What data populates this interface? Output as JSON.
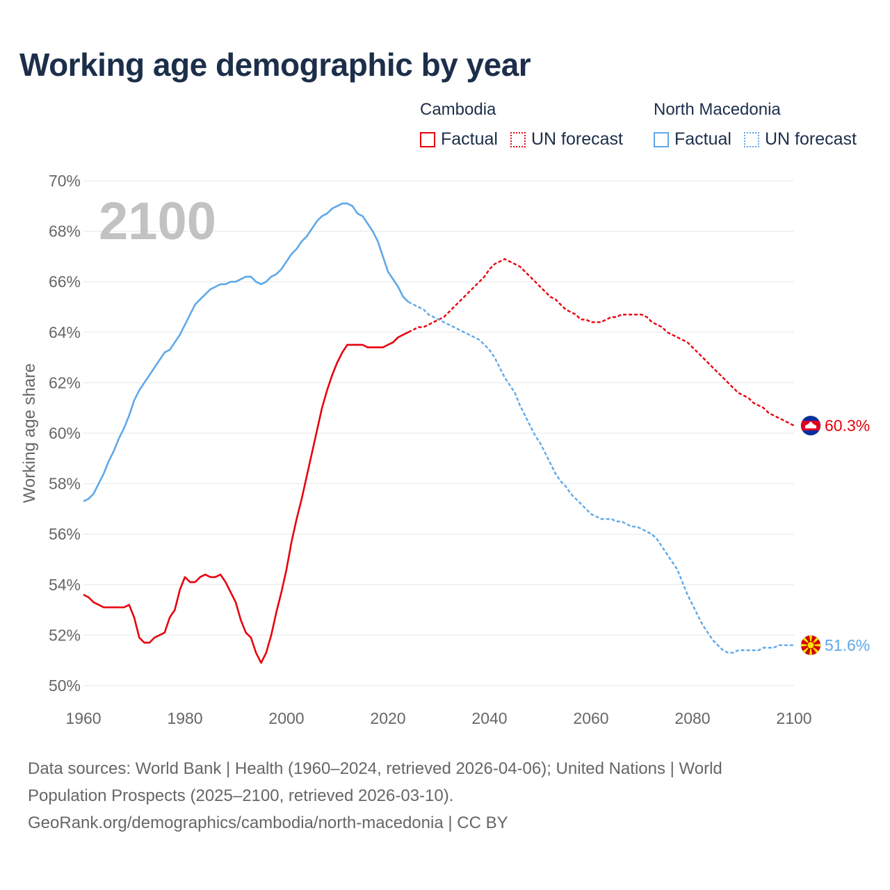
{
  "title": "Working age demographic by year",
  "legend": {
    "groups": [
      {
        "country": "Cambodia",
        "color": "#e8000b",
        "factual_label": "Factual",
        "forecast_label": "UN forecast"
      },
      {
        "country": "North Macedonia",
        "color": "#5fa8e8",
        "factual_label": "Factual",
        "forecast_label": "UN forecast"
      }
    ]
  },
  "year_watermark": "2100",
  "footer": {
    "line1": "Data sources: World Bank | Health (1960–2024, retrieved 2026-04-06); United Nations | World",
    "line2": "Population Prospects (2025–2100, retrieved 2026-03-10).",
    "line3": "GeoRank.org/demographics/cambodia/north-macedonia | CC BY"
  },
  "chart_data": {
    "type": "line",
    "title": "Working age demographic by year",
    "xlabel": "",
    "ylabel": "Working age share",
    "xlim": [
      1960,
      2100
    ],
    "ylim": [
      50,
      70
    ],
    "x_ticks": [
      1960,
      1980,
      2000,
      2020,
      2040,
      2060,
      2080,
      2100
    ],
    "y_ticks": [
      50,
      52,
      54,
      56,
      58,
      60,
      62,
      64,
      66,
      68,
      70
    ],
    "y_tick_suffix": "%",
    "grid": true,
    "series": [
      {
        "name": "Cambodia",
        "color": "#e8000b",
        "end_label": "60.3%",
        "factual": [
          [
            1960,
            53.6
          ],
          [
            1961,
            53.5
          ],
          [
            1962,
            53.3
          ],
          [
            1963,
            53.2
          ],
          [
            1964,
            53.1
          ],
          [
            1965,
            53.1
          ],
          [
            1966,
            53.1
          ],
          [
            1967,
            53.1
          ],
          [
            1968,
            53.1
          ],
          [
            1969,
            53.2
          ],
          [
            1970,
            52.7
          ],
          [
            1971,
            51.9
          ],
          [
            1972,
            51.7
          ],
          [
            1973,
            51.7
          ],
          [
            1974,
            51.9
          ],
          [
            1975,
            52.0
          ],
          [
            1976,
            52.1
          ],
          [
            1977,
            52.7
          ],
          [
            1978,
            53.0
          ],
          [
            1979,
            53.8
          ],
          [
            1980,
            54.3
          ],
          [
            1981,
            54.1
          ],
          [
            1982,
            54.1
          ],
          [
            1983,
            54.3
          ],
          [
            1984,
            54.4
          ],
          [
            1985,
            54.3
          ],
          [
            1986,
            54.3
          ],
          [
            1987,
            54.4
          ],
          [
            1988,
            54.1
          ],
          [
            1989,
            53.7
          ],
          [
            1990,
            53.3
          ],
          [
            1991,
            52.6
          ],
          [
            1992,
            52.1
          ],
          [
            1993,
            51.9
          ],
          [
            1994,
            51.3
          ],
          [
            1995,
            50.9
          ],
          [
            1996,
            51.3
          ],
          [
            1997,
            52.0
          ],
          [
            1998,
            52.9
          ],
          [
            1999,
            53.7
          ],
          [
            2000,
            54.6
          ],
          [
            2001,
            55.7
          ],
          [
            2002,
            56.6
          ],
          [
            2003,
            57.4
          ],
          [
            2004,
            58.3
          ],
          [
            2005,
            59.2
          ],
          [
            2006,
            60.1
          ],
          [
            2007,
            61.0
          ],
          [
            2008,
            61.7
          ],
          [
            2009,
            62.3
          ],
          [
            2010,
            62.8
          ],
          [
            2011,
            63.2
          ],
          [
            2012,
            63.5
          ],
          [
            2013,
            63.5
          ],
          [
            2014,
            63.5
          ],
          [
            2015,
            63.5
          ],
          [
            2016,
            63.4
          ],
          [
            2017,
            63.4
          ],
          [
            2018,
            63.4
          ],
          [
            2019,
            63.4
          ],
          [
            2020,
            63.5
          ],
          [
            2021,
            63.6
          ],
          [
            2022,
            63.8
          ],
          [
            2023,
            63.9
          ],
          [
            2024,
            64.0
          ]
        ],
        "forecast": [
          [
            2024,
            64.0
          ],
          [
            2025,
            64.1
          ],
          [
            2026,
            64.2
          ],
          [
            2027,
            64.2
          ],
          [
            2028,
            64.3
          ],
          [
            2029,
            64.4
          ],
          [
            2030,
            64.5
          ],
          [
            2031,
            64.6
          ],
          [
            2032,
            64.8
          ],
          [
            2033,
            65.0
          ],
          [
            2034,
            65.2
          ],
          [
            2035,
            65.4
          ],
          [
            2036,
            65.6
          ],
          [
            2037,
            65.8
          ],
          [
            2038,
            66.0
          ],
          [
            2039,
            66.2
          ],
          [
            2040,
            66.5
          ],
          [
            2041,
            66.7
          ],
          [
            2042,
            66.8
          ],
          [
            2043,
            66.9
          ],
          [
            2044,
            66.8
          ],
          [
            2045,
            66.7
          ],
          [
            2046,
            66.6
          ],
          [
            2047,
            66.4
          ],
          [
            2048,
            66.2
          ],
          [
            2049,
            66.0
          ],
          [
            2050,
            65.8
          ],
          [
            2051,
            65.6
          ],
          [
            2052,
            65.4
          ],
          [
            2053,
            65.3
          ],
          [
            2054,
            65.1
          ],
          [
            2055,
            64.9
          ],
          [
            2056,
            64.8
          ],
          [
            2057,
            64.7
          ],
          [
            2058,
            64.5
          ],
          [
            2059,
            64.5
          ],
          [
            2060,
            64.4
          ],
          [
            2061,
            64.4
          ],
          [
            2062,
            64.4
          ],
          [
            2063,
            64.5
          ],
          [
            2064,
            64.6
          ],
          [
            2065,
            64.6
          ],
          [
            2066,
            64.7
          ],
          [
            2067,
            64.7
          ],
          [
            2068,
            64.7
          ],
          [
            2069,
            64.7
          ],
          [
            2070,
            64.7
          ],
          [
            2071,
            64.6
          ],
          [
            2072,
            64.4
          ],
          [
            2073,
            64.3
          ],
          [
            2074,
            64.2
          ],
          [
            2075,
            64.0
          ],
          [
            2076,
            63.9
          ],
          [
            2077,
            63.8
          ],
          [
            2078,
            63.7
          ],
          [
            2079,
            63.6
          ],
          [
            2080,
            63.4
          ],
          [
            2081,
            63.2
          ],
          [
            2082,
            63.0
          ],
          [
            2083,
            62.8
          ],
          [
            2084,
            62.6
          ],
          [
            2085,
            62.4
          ],
          [
            2086,
            62.2
          ],
          [
            2087,
            62.0
          ],
          [
            2088,
            61.8
          ],
          [
            2089,
            61.6
          ],
          [
            2090,
            61.5
          ],
          [
            2091,
            61.4
          ],
          [
            2092,
            61.2
          ],
          [
            2093,
            61.1
          ],
          [
            2094,
            61.0
          ],
          [
            2095,
            60.8
          ],
          [
            2096,
            60.7
          ],
          [
            2097,
            60.6
          ],
          [
            2098,
            60.5
          ],
          [
            2099,
            60.4
          ],
          [
            2100,
            60.3
          ]
        ]
      },
      {
        "name": "North Macedonia",
        "color": "#5fa8e8",
        "end_label": "51.6%",
        "factual": [
          [
            1960,
            57.3
          ],
          [
            1961,
            57.4
          ],
          [
            1962,
            57.6
          ],
          [
            1963,
            58.0
          ],
          [
            1964,
            58.4
          ],
          [
            1965,
            58.9
          ],
          [
            1966,
            59.3
          ],
          [
            1967,
            59.8
          ],
          [
            1968,
            60.2
          ],
          [
            1969,
            60.7
          ],
          [
            1970,
            61.3
          ],
          [
            1971,
            61.7
          ],
          [
            1972,
            62.0
          ],
          [
            1973,
            62.3
          ],
          [
            1974,
            62.6
          ],
          [
            1975,
            62.9
          ],
          [
            1976,
            63.2
          ],
          [
            1977,
            63.3
          ],
          [
            1978,
            63.6
          ],
          [
            1979,
            63.9
          ],
          [
            1980,
            64.3
          ],
          [
            1981,
            64.7
          ],
          [
            1982,
            65.1
          ],
          [
            1983,
            65.3
          ],
          [
            1984,
            65.5
          ],
          [
            1985,
            65.7
          ],
          [
            1986,
            65.8
          ],
          [
            1987,
            65.9
          ],
          [
            1988,
            65.9
          ],
          [
            1989,
            66.0
          ],
          [
            1990,
            66.0
          ],
          [
            1991,
            66.1
          ],
          [
            1992,
            66.2
          ],
          [
            1993,
            66.2
          ],
          [
            1994,
            66.0
          ],
          [
            1995,
            65.9
          ],
          [
            1996,
            66.0
          ],
          [
            1997,
            66.2
          ],
          [
            1998,
            66.3
          ],
          [
            1999,
            66.5
          ],
          [
            2000,
            66.8
          ],
          [
            2001,
            67.1
          ],
          [
            2002,
            67.3
          ],
          [
            2003,
            67.6
          ],
          [
            2004,
            67.8
          ],
          [
            2005,
            68.1
          ],
          [
            2006,
            68.4
          ],
          [
            2007,
            68.6
          ],
          [
            2008,
            68.7
          ],
          [
            2009,
            68.9
          ],
          [
            2010,
            69.0
          ],
          [
            2011,
            69.1
          ],
          [
            2012,
            69.1
          ],
          [
            2013,
            69.0
          ],
          [
            2014,
            68.7
          ],
          [
            2015,
            68.6
          ],
          [
            2016,
            68.3
          ],
          [
            2017,
            68.0
          ],
          [
            2018,
            67.6
          ],
          [
            2019,
            67.0
          ],
          [
            2020,
            66.4
          ],
          [
            2021,
            66.1
          ],
          [
            2022,
            65.8
          ],
          [
            2023,
            65.4
          ],
          [
            2024,
            65.2
          ]
        ],
        "forecast": [
          [
            2024,
            65.2
          ],
          [
            2025,
            65.1
          ],
          [
            2026,
            65.0
          ],
          [
            2027,
            64.9
          ],
          [
            2028,
            64.7
          ],
          [
            2029,
            64.6
          ],
          [
            2030,
            64.5
          ],
          [
            2031,
            64.4
          ],
          [
            2032,
            64.3
          ],
          [
            2033,
            64.2
          ],
          [
            2034,
            64.1
          ],
          [
            2035,
            64.0
          ],
          [
            2036,
            63.9
          ],
          [
            2037,
            63.8
          ],
          [
            2038,
            63.7
          ],
          [
            2039,
            63.5
          ],
          [
            2040,
            63.3
          ],
          [
            2041,
            63.0
          ],
          [
            2042,
            62.6
          ],
          [
            2043,
            62.2
          ],
          [
            2044,
            61.9
          ],
          [
            2045,
            61.6
          ],
          [
            2046,
            61.1
          ],
          [
            2047,
            60.7
          ],
          [
            2048,
            60.3
          ],
          [
            2049,
            59.9
          ],
          [
            2050,
            59.6
          ],
          [
            2051,
            59.2
          ],
          [
            2052,
            58.8
          ],
          [
            2053,
            58.4
          ],
          [
            2054,
            58.1
          ],
          [
            2055,
            57.9
          ],
          [
            2056,
            57.6
          ],
          [
            2057,
            57.4
          ],
          [
            2058,
            57.2
          ],
          [
            2059,
            57.0
          ],
          [
            2060,
            56.8
          ],
          [
            2061,
            56.7
          ],
          [
            2062,
            56.6
          ],
          [
            2063,
            56.6
          ],
          [
            2064,
            56.6
          ],
          [
            2065,
            56.5
          ],
          [
            2066,
            56.5
          ],
          [
            2067,
            56.4
          ],
          [
            2068,
            56.3
          ],
          [
            2069,
            56.3
          ],
          [
            2070,
            56.2
          ],
          [
            2071,
            56.1
          ],
          [
            2072,
            56.0
          ],
          [
            2073,
            55.8
          ],
          [
            2074,
            55.5
          ],
          [
            2075,
            55.2
          ],
          [
            2076,
            54.9
          ],
          [
            2077,
            54.6
          ],
          [
            2078,
            54.1
          ],
          [
            2079,
            53.6
          ],
          [
            2080,
            53.2
          ],
          [
            2081,
            52.8
          ],
          [
            2082,
            52.4
          ],
          [
            2083,
            52.1
          ],
          [
            2084,
            51.8
          ],
          [
            2085,
            51.6
          ],
          [
            2086,
            51.4
          ],
          [
            2087,
            51.3
          ],
          [
            2088,
            51.3
          ],
          [
            2089,
            51.4
          ],
          [
            2090,
            51.4
          ],
          [
            2091,
            51.4
          ],
          [
            2092,
            51.4
          ],
          [
            2093,
            51.4
          ],
          [
            2094,
            51.5
          ],
          [
            2095,
            51.5
          ],
          [
            2096,
            51.5
          ],
          [
            2097,
            51.6
          ],
          [
            2098,
            51.6
          ],
          [
            2099,
            51.6
          ],
          [
            2100,
            51.6
          ]
        ]
      }
    ]
  }
}
